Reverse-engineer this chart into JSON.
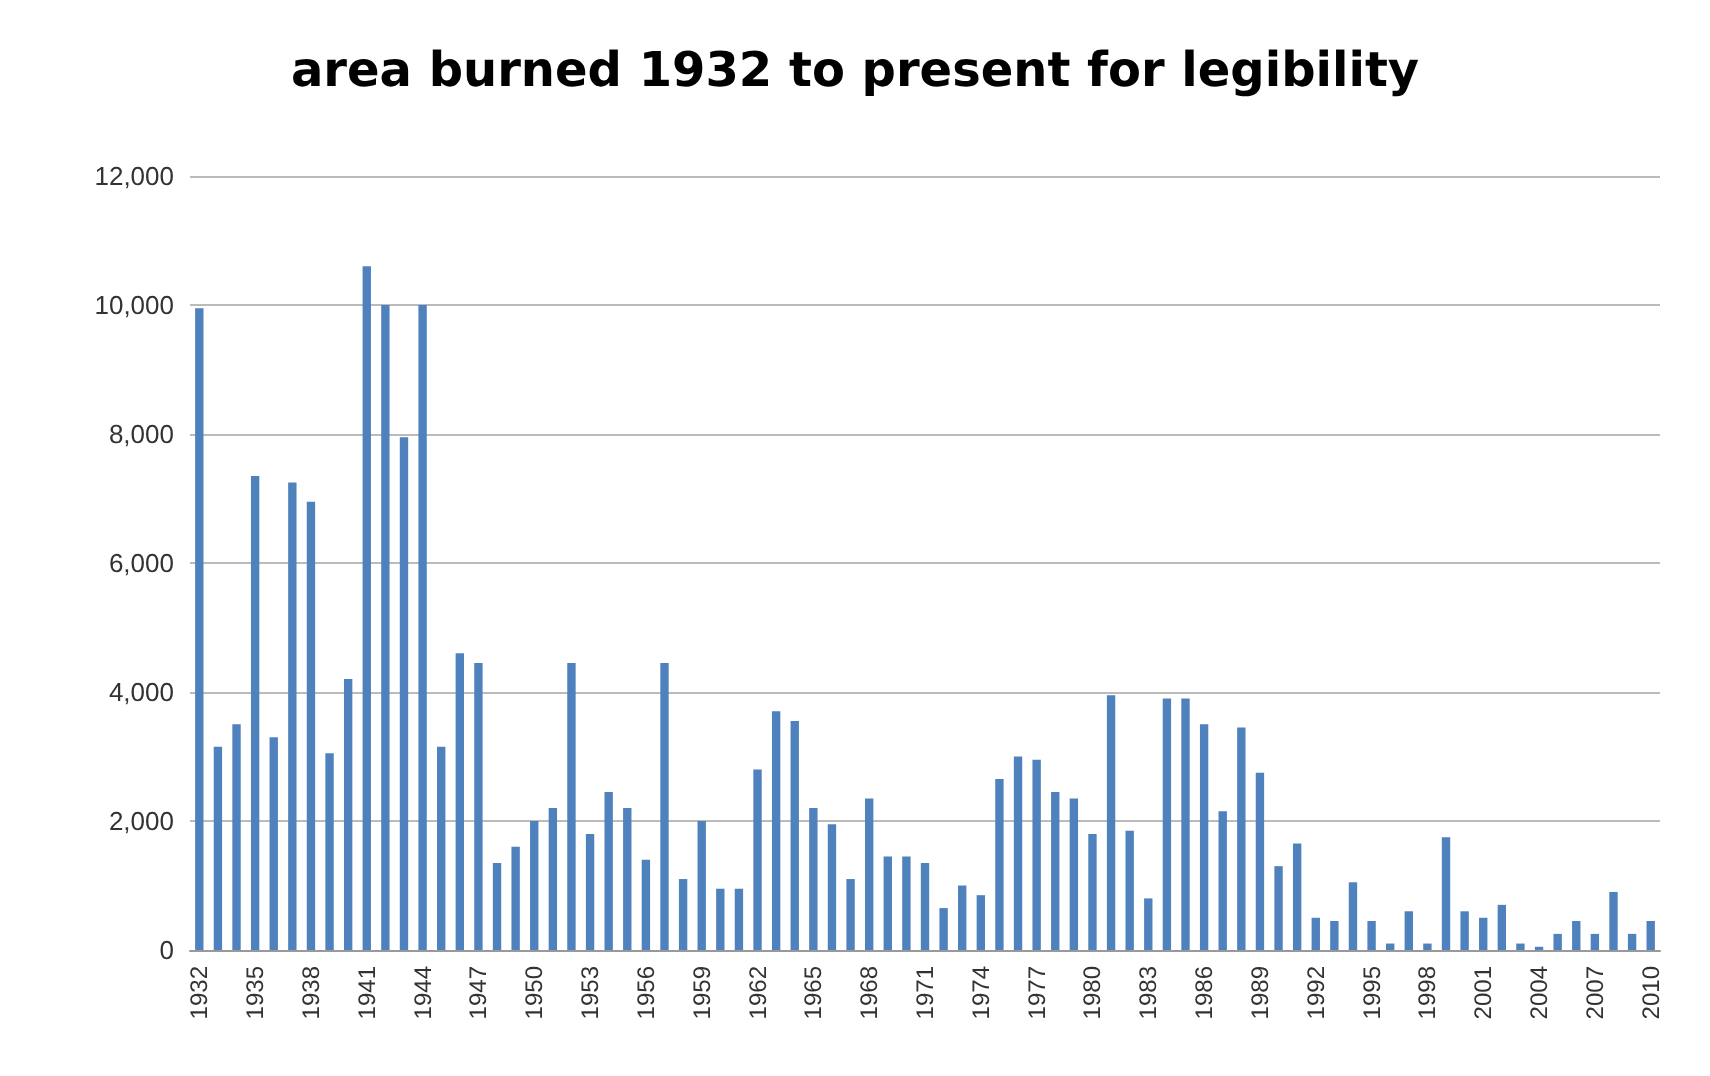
{
  "chart_data": {
    "type": "bar",
    "title": "area burned 1932 to present for legibility",
    "categories": [
      "1932",
      null,
      null,
      "1935",
      null,
      null,
      "1938",
      null,
      null,
      "1941",
      null,
      null,
      "1944",
      null,
      null,
      "1947",
      null,
      null,
      "1950",
      null,
      null,
      "1953",
      null,
      null,
      "1956",
      null,
      null,
      "1959",
      null,
      null,
      "1962",
      null,
      null,
      "1965",
      null,
      null,
      "1968",
      null,
      null,
      "1971",
      null,
      null,
      "1974",
      null,
      null,
      "1977",
      null,
      null,
      "1980",
      null,
      null,
      "1983",
      null,
      null,
      "1986",
      null,
      null,
      "1989",
      null,
      null,
      "1992",
      null,
      null,
      "1995",
      null,
      null,
      "1998",
      null,
      null,
      "2001",
      null,
      null,
      "2004",
      null,
      null,
      "2007",
      null,
      null,
      "2010"
    ],
    "values": [
      9950,
      3150,
      3500,
      7350,
      3300,
      7250,
      6950,
      3050,
      4200,
      10600,
      10000,
      7950,
      10000,
      3150,
      4600,
      4450,
      1350,
      1600,
      2000,
      2200,
      4450,
      1800,
      2450,
      2200,
      1400,
      4450,
      1100,
      2000,
      950,
      950,
      2800,
      3700,
      3550,
      2200,
      1950,
      1100,
      2350,
      1450,
      1450,
      1350,
      650,
      1000,
      850,
      2650,
      3000,
      2950,
      2450,
      2350,
      1800,
      3950,
      1850,
      800,
      3900,
      3900,
      3500,
      2150,
      3450,
      2750,
      1300,
      1650,
      500,
      450,
      1050,
      450,
      100,
      600,
      100,
      1750,
      600,
      500,
      700,
      100,
      50,
      250,
      450,
      250,
      900,
      250,
      450
    ],
    "color": "#4f81bd",
    "ylim": [
      0,
      12000
    ],
    "yticks": [
      {
        "value": 0,
        "label": "0"
      },
      {
        "value": 2000,
        "label": "2,000"
      },
      {
        "value": 4000,
        "label": "4,000"
      },
      {
        "value": 6000,
        "label": "6,000"
      },
      {
        "value": 8000,
        "label": "8,000"
      },
      {
        "value": 10000,
        "label": "10,000"
      },
      {
        "value": 12000,
        "label": "12,000"
      }
    ],
    "grid": "y"
  }
}
